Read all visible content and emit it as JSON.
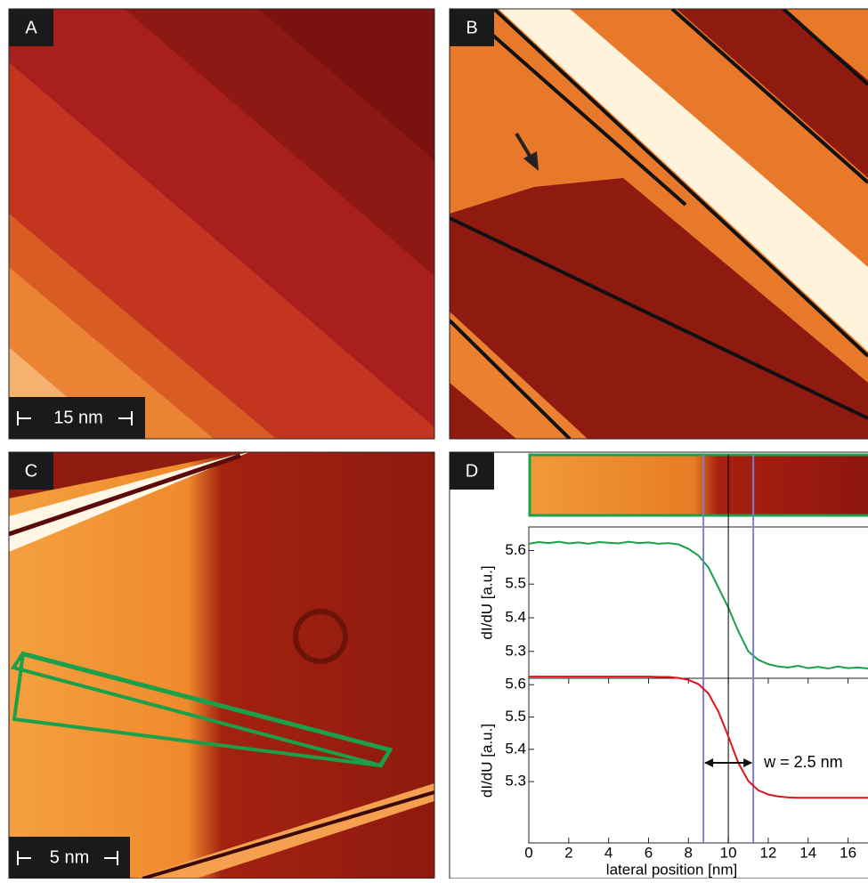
{
  "panels": [
    {
      "label": "A",
      "scale_bar": "15 nm"
    },
    {
      "label": "B"
    },
    {
      "label": "C",
      "scale_bar": "5 nm"
    },
    {
      "label": "D"
    }
  ],
  "chart_data": [
    {
      "type": "line",
      "ylabel": "dI/dU [a.u.]",
      "color": "#1aa04a",
      "x": [
        0,
        0.5,
        1,
        1.5,
        2,
        2.5,
        3,
        3.5,
        4,
        4.5,
        5,
        5.5,
        6,
        6.5,
        7,
        7.5,
        8,
        8.5,
        9,
        9.5,
        10,
        10.5,
        11,
        11.5,
        12,
        12.5,
        13,
        13.5,
        14,
        14.5,
        15,
        15.5,
        16,
        16.5,
        17
      ],
      "values": [
        5.62,
        5.625,
        5.622,
        5.626,
        5.621,
        5.624,
        5.62,
        5.625,
        5.623,
        5.621,
        5.626,
        5.622,
        5.624,
        5.62,
        5.622,
        5.618,
        5.605,
        5.585,
        5.55,
        5.49,
        5.43,
        5.36,
        5.3,
        5.275,
        5.262,
        5.255,
        5.252,
        5.257,
        5.25,
        5.254,
        5.249,
        5.255,
        5.25,
        5.252,
        5.249
      ],
      "xlim": [
        0,
        17
      ],
      "ylim": [
        5.22,
        5.67
      ],
      "yticks": [
        5.3,
        5.4,
        5.5,
        5.6
      ]
    },
    {
      "type": "line",
      "ylabel": "dI/dU [a.u.]",
      "xlabel": "lateral position [nm]",
      "color": "#e0141b",
      "x": [
        0,
        0.5,
        1,
        1.5,
        2,
        2.5,
        3,
        3.5,
        4,
        4.5,
        5,
        5.5,
        6,
        6.5,
        7,
        7.5,
        8,
        8.5,
        9,
        9.5,
        10,
        10.5,
        11,
        11.5,
        12,
        12.5,
        13,
        13.5,
        14,
        14.5,
        15,
        15.5,
        16,
        16.5,
        17
      ],
      "values": [
        5.625,
        5.625,
        5.625,
        5.625,
        5.625,
        5.625,
        5.625,
        5.625,
        5.625,
        5.625,
        5.625,
        5.625,
        5.625,
        5.624,
        5.624,
        5.621,
        5.615,
        5.602,
        5.573,
        5.517,
        5.44,
        5.358,
        5.302,
        5.273,
        5.26,
        5.254,
        5.251,
        5.25,
        5.25,
        5.25,
        5.25,
        5.25,
        5.25,
        5.25,
        5.25
      ],
      "xlim": [
        0,
        17
      ],
      "ylim": [
        5.11,
        5.62
      ],
      "yticks": [
        5.3,
        5.4,
        5.5,
        5.6
      ],
      "xticks": [
        0,
        2,
        4,
        6,
        8,
        10,
        12,
        14,
        16
      ],
      "vlines": [
        {
          "value": 8.75,
          "color": "#7d7fc8"
        },
        {
          "value": 10,
          "color": "#000000"
        },
        {
          "value": 11.25,
          "color": "#7d7fc8"
        }
      ],
      "annotation": "w = 2.5 nm"
    }
  ]
}
